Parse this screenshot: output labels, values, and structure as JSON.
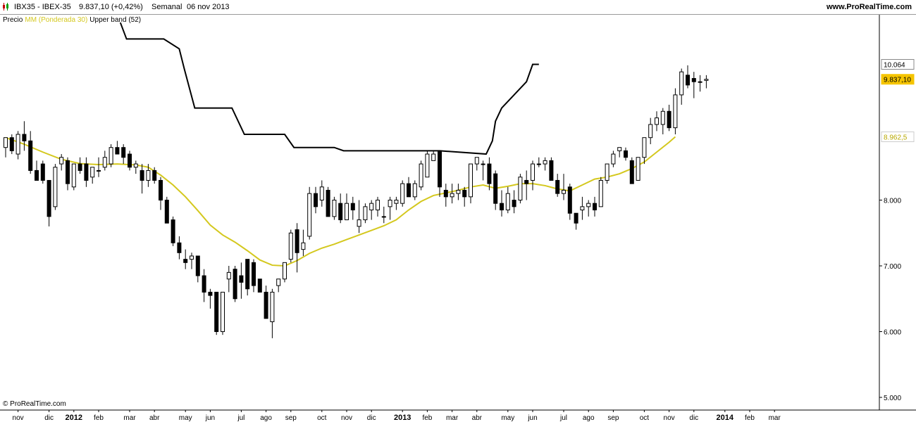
{
  "header": {
    "symbol": "IBX35 - IBEX-35",
    "value": "9.837,10 (+0,42%)",
    "period": "Semanal",
    "date": "06 nov 2013",
    "site": "www.ProRealTime.com"
  },
  "legend": {
    "price": "Precio",
    "ma": "MM (Ponderada 30)",
    "band": "Upper band (52)"
  },
  "watermark": "© ProRealTime.com",
  "colors": {
    "ma": "#d4c81e",
    "band": "#000000",
    "up_candle": "#ffffff",
    "down_candle": "#000000",
    "last_price_tag": "#f5c400",
    "ma_tag_text": "#b8a800"
  },
  "chart_data": {
    "type": "candlestick",
    "title": "IBX35 - IBEX-35",
    "timeframe": "Semanal",
    "ylim": [
      4900,
      10700
    ],
    "y_ticks": [
      {
        "value": 5000,
        "label": "5.000"
      },
      {
        "value": 6000,
        "label": "6.000"
      },
      {
        "value": 7000,
        "label": "7.000"
      },
      {
        "value": 8000,
        "label": "8.000"
      }
    ],
    "price_tags": [
      {
        "value": 10064,
        "label": "10.064",
        "kind": "band"
      },
      {
        "value": 9837.1,
        "label": "9.837,10",
        "kind": "last"
      },
      {
        "value": 8962.5,
        "label": "8.962,5",
        "kind": "ma"
      }
    ],
    "x_ticks": [
      {
        "label": "nov",
        "week": 2,
        "year": false
      },
      {
        "label": "dic",
        "week": 7,
        "year": false
      },
      {
        "label": "2012",
        "week": 11,
        "year": true
      },
      {
        "label": "feb",
        "week": 15,
        "year": false
      },
      {
        "label": "mar",
        "week": 20,
        "year": false
      },
      {
        "label": "abr",
        "week": 24,
        "year": false
      },
      {
        "label": "may",
        "week": 29,
        "year": false
      },
      {
        "label": "jun",
        "week": 33,
        "year": false
      },
      {
        "label": "jul",
        "week": 38,
        "year": false
      },
      {
        "label": "ago",
        "week": 42,
        "year": false
      },
      {
        "label": "sep",
        "week": 46,
        "year": false
      },
      {
        "label": "oct",
        "week": 51,
        "year": false
      },
      {
        "label": "nov",
        "week": 55,
        "year": false
      },
      {
        "label": "dic",
        "week": 59,
        "year": false
      },
      {
        "label": "2013",
        "week": 64,
        "year": true
      },
      {
        "label": "feb",
        "week": 68,
        "year": false
      },
      {
        "label": "mar",
        "week": 72,
        "year": false
      },
      {
        "label": "abr",
        "week": 76,
        "year": false
      },
      {
        "label": "may",
        "week": 81,
        "year": false
      },
      {
        "label": "jun",
        "week": 85,
        "year": false
      },
      {
        "label": "jul",
        "week": 90,
        "year": false
      },
      {
        "label": "ago",
        "week": 94,
        "year": false
      },
      {
        "label": "sep",
        "week": 98,
        "year": false
      },
      {
        "label": "oct",
        "week": 103,
        "year": false
      },
      {
        "label": "nov",
        "week": 107,
        "year": false
      },
      {
        "label": "dic",
        "week": 111,
        "year": false
      },
      {
        "label": "2014",
        "week": 116,
        "year": true
      },
      {
        "label": "feb",
        "week": 120,
        "year": false
      },
      {
        "label": "mar",
        "week": 124,
        "year": false
      }
    ],
    "candles": [
      [
        8800,
        8950,
        8650,
        8950
      ],
      [
        8950,
        9000,
        8700,
        8750
      ],
      [
        8700,
        9050,
        8620,
        9000
      ],
      [
        9000,
        9200,
        8750,
        8900
      ],
      [
        8900,
        9050,
        8400,
        8450
      ],
      [
        8450,
        8600,
        8300,
        8300
      ],
      [
        8550,
        8600,
        8250,
        8300
      ],
      [
        8300,
        8300,
        7600,
        7750
      ],
      [
        7900,
        8550,
        7850,
        8500
      ],
      [
        8550,
        8700,
        8450,
        8650
      ],
      [
        8600,
        8650,
        8150,
        8250
      ],
      [
        8200,
        8550,
        8150,
        8550
      ],
      [
        8550,
        8650,
        8400,
        8450
      ],
      [
        8550,
        8650,
        8200,
        8300
      ],
      [
        8350,
        8500,
        8250,
        8500
      ],
      [
        8450,
        8650,
        8350,
        8450
      ],
      [
        8500,
        8750,
        8450,
        8650
      ],
      [
        8550,
        8850,
        8500,
        8800
      ],
      [
        8800,
        8900,
        8700,
        8700
      ],
      [
        8800,
        8850,
        8550,
        8650
      ],
      [
        8700,
        8750,
        8450,
        8500
      ],
      [
        8500,
        8600,
        8400,
        8550
      ],
      [
        8450,
        8550,
        8100,
        8300
      ],
      [
        8300,
        8550,
        8200,
        8450
      ],
      [
        8450,
        8500,
        8250,
        8300
      ],
      [
        8300,
        8350,
        7850,
        8000
      ],
      [
        8000,
        8050,
        7700,
        7650
      ],
      [
        7700,
        7750,
        7300,
        7350
      ],
      [
        7350,
        7450,
        7100,
        7200
      ],
      [
        7100,
        7250,
        6950,
        7050
      ],
      [
        7100,
        7200,
        6950,
        7150
      ],
      [
        7150,
        7150,
        6750,
        6850
      ],
      [
        6850,
        6950,
        6450,
        6600
      ],
      [
        6600,
        6650,
        6350,
        6550
      ],
      [
        6600,
        6600,
        5950,
        6000
      ],
      [
        6000,
        6600,
        5950,
        6600
      ],
      [
        6800,
        7000,
        6600,
        6900
      ],
      [
        6950,
        7000,
        6450,
        6500
      ],
      [
        6850,
        7050,
        6500,
        6750
      ],
      [
        7100,
        7100,
        6550,
        6650
      ],
      [
        7050,
        7100,
        6600,
        6700
      ],
      [
        6800,
        6800,
        6650,
        6600
      ],
      [
        6600,
        6700,
        6200,
        6200
      ],
      [
        6150,
        6650,
        5900,
        6600
      ],
      [
        6700,
        6800,
        6600,
        6800
      ],
      [
        6800,
        7050,
        6750,
        7050
      ],
      [
        7100,
        7550,
        7050,
        7500
      ],
      [
        7550,
        7650,
        6900,
        7200
      ],
      [
        7250,
        7550,
        7150,
        7350
      ],
      [
        7450,
        8200,
        7400,
        8100
      ],
      [
        8100,
        8200,
        7800,
        7900
      ],
      [
        8000,
        8300,
        7900,
        8200
      ],
      [
        8150,
        8200,
        7800,
        7750
      ],
      [
        7750,
        8050,
        7700,
        8000
      ],
      [
        7950,
        8100,
        7650,
        7700
      ],
      [
        7700,
        8100,
        7700,
        7950
      ],
      [
        7950,
        8050,
        7700,
        7850
      ],
      [
        7600,
        8000,
        7500,
        7700
      ],
      [
        7700,
        7950,
        7650,
        7900
      ],
      [
        7850,
        8000,
        7700,
        7950
      ],
      [
        7850,
        8050,
        7750,
        8000
      ],
      [
        7750,
        7900,
        7650,
        7750
      ],
      [
        7900,
        8050,
        7700,
        8000
      ],
      [
        7950,
        8050,
        7850,
        8000
      ],
      [
        7950,
        8300,
        7900,
        8250
      ],
      [
        8250,
        8350,
        8050,
        8050
      ],
      [
        8050,
        8300,
        8000,
        8250
      ],
      [
        8200,
        8600,
        8150,
        8550
      ],
      [
        8350,
        8750,
        8350,
        8700
      ],
      [
        8600,
        8750,
        8600,
        8700
      ],
      [
        8750,
        8750,
        8050,
        8200
      ],
      [
        8150,
        8250,
        7900,
        8050
      ],
      [
        8050,
        8250,
        7950,
        8100
      ],
      [
        8100,
        8250,
        8000,
        8150
      ],
      [
        8150,
        8200,
        7900,
        8050
      ],
      [
        8050,
        8550,
        7950,
        8550
      ],
      [
        8550,
        8650,
        8450,
        8650
      ],
      [
        8550,
        8600,
        8300,
        8550
      ],
      [
        8550,
        8650,
        8150,
        8250
      ],
      [
        8400,
        8450,
        7850,
        7950
      ],
      [
        7950,
        8150,
        7750,
        7850
      ],
      [
        7850,
        8200,
        7800,
        8100
      ],
      [
        8000,
        8150,
        7800,
        7900
      ],
      [
        8000,
        8400,
        7950,
        8350
      ],
      [
        8300,
        8450,
        8000,
        8250
      ],
      [
        8300,
        8600,
        8150,
        8550
      ],
      [
        8550,
        8650,
        8500,
        8550
      ],
      [
        8550,
        8650,
        8450,
        8600
      ],
      [
        8600,
        8650,
        8350,
        8300
      ],
      [
        8300,
        8400,
        8050,
        8100
      ],
      [
        8100,
        8400,
        8000,
        8150
      ],
      [
        8200,
        8250,
        7700,
        7800
      ],
      [
        7800,
        7750,
        7550,
        7650
      ],
      [
        7850,
        8050,
        7700,
        7900
      ],
      [
        7900,
        8000,
        7750,
        7950
      ],
      [
        7950,
        8050,
        7750,
        7850
      ],
      [
        7900,
        8350,
        7900,
        8300
      ],
      [
        8300,
        8550,
        8250,
        8550
      ],
      [
        8550,
        8750,
        8500,
        8700
      ],
      [
        8750,
        8800,
        8650,
        8800
      ],
      [
        8750,
        8800,
        8600,
        8650
      ],
      [
        8600,
        8650,
        8250,
        8250
      ],
      [
        8300,
        8650,
        8300,
        8650
      ],
      [
        8650,
        8950,
        8550,
        8950
      ],
      [
        8950,
        9250,
        8850,
        9150
      ],
      [
        9150,
        9350,
        9050,
        9250
      ],
      [
        9150,
        9400,
        9000,
        9350
      ],
      [
        9350,
        9450,
        9050,
        9100
      ],
      [
        9100,
        9700,
        9000,
        9600
      ],
      [
        9600,
        10000,
        9450,
        9950
      ],
      [
        9900,
        10050,
        9700,
        9750
      ],
      [
        9850,
        9950,
        9550,
        9800
      ],
      [
        9800,
        9900,
        9650,
        9800
      ],
      [
        9820,
        9900,
        9700,
        9837
      ]
    ],
    "ma_series": {
      "name": "MM (Ponderada 30)",
      "points": [
        [
          0,
          8950
        ],
        [
          3,
          8850
        ],
        [
          6,
          8730
        ],
        [
          9,
          8620
        ],
        [
          12,
          8555
        ],
        [
          15,
          8540
        ],
        [
          18,
          8550
        ],
        [
          21,
          8535
        ],
        [
          23,
          8500
        ],
        [
          25,
          8380
        ],
        [
          27,
          8230
        ],
        [
          29,
          8050
        ],
        [
          31,
          7840
        ],
        [
          33,
          7620
        ],
        [
          35,
          7470
        ],
        [
          37,
          7360
        ],
        [
          39,
          7230
        ],
        [
          41,
          7090
        ],
        [
          43,
          7010
        ],
        [
          45,
          7000
        ],
        [
          47,
          7080
        ],
        [
          49,
          7190
        ],
        [
          51,
          7270
        ],
        [
          53,
          7330
        ],
        [
          55,
          7400
        ],
        [
          57,
          7470
        ],
        [
          59,
          7540
        ],
        [
          61,
          7610
        ],
        [
          63,
          7700
        ],
        [
          65,
          7850
        ],
        [
          67,
          7980
        ],
        [
          69,
          8070
        ],
        [
          71,
          8110
        ],
        [
          73,
          8150
        ],
        [
          75,
          8200
        ],
        [
          77,
          8230
        ],
        [
          79,
          8180
        ],
        [
          81,
          8210
        ],
        [
          83,
          8250
        ],
        [
          85,
          8250
        ],
        [
          87,
          8220
        ],
        [
          89,
          8170
        ],
        [
          91,
          8140
        ],
        [
          93,
          8230
        ],
        [
          95,
          8320
        ],
        [
          97,
          8350
        ],
        [
          99,
          8400
        ],
        [
          101,
          8480
        ],
        [
          103,
          8580
        ],
        [
          105,
          8730
        ],
        [
          107,
          8880
        ],
        [
          108,
          8962.5
        ]
      ]
    },
    "band_series": {
      "name": "Upper band (52)",
      "points": [
        [
          18.5,
          10700
        ],
        [
          19.5,
          10450
        ],
        [
          25.5,
          10450
        ],
        [
          28,
          10300
        ],
        [
          28.8,
          10000
        ],
        [
          30.5,
          9400
        ],
        [
          33,
          9400
        ],
        [
          36.5,
          9400
        ],
        [
          38.5,
          9000
        ],
        [
          40,
          9000
        ],
        [
          45,
          9000
        ],
        [
          46.5,
          8800
        ],
        [
          53,
          8800
        ],
        [
          54.5,
          8750
        ],
        [
          61,
          8750
        ],
        [
          63.5,
          8750
        ],
        [
          66,
          8750
        ],
        [
          70,
          8750
        ],
        [
          77.5,
          8700
        ],
        [
          78.5,
          8900
        ],
        [
          79,
          9200
        ],
        [
          80,
          9400
        ],
        [
          84,
          9800
        ],
        [
          84,
          9800
        ],
        [
          85,
          10064
        ],
        [
          86,
          10064
        ]
      ]
    }
  }
}
